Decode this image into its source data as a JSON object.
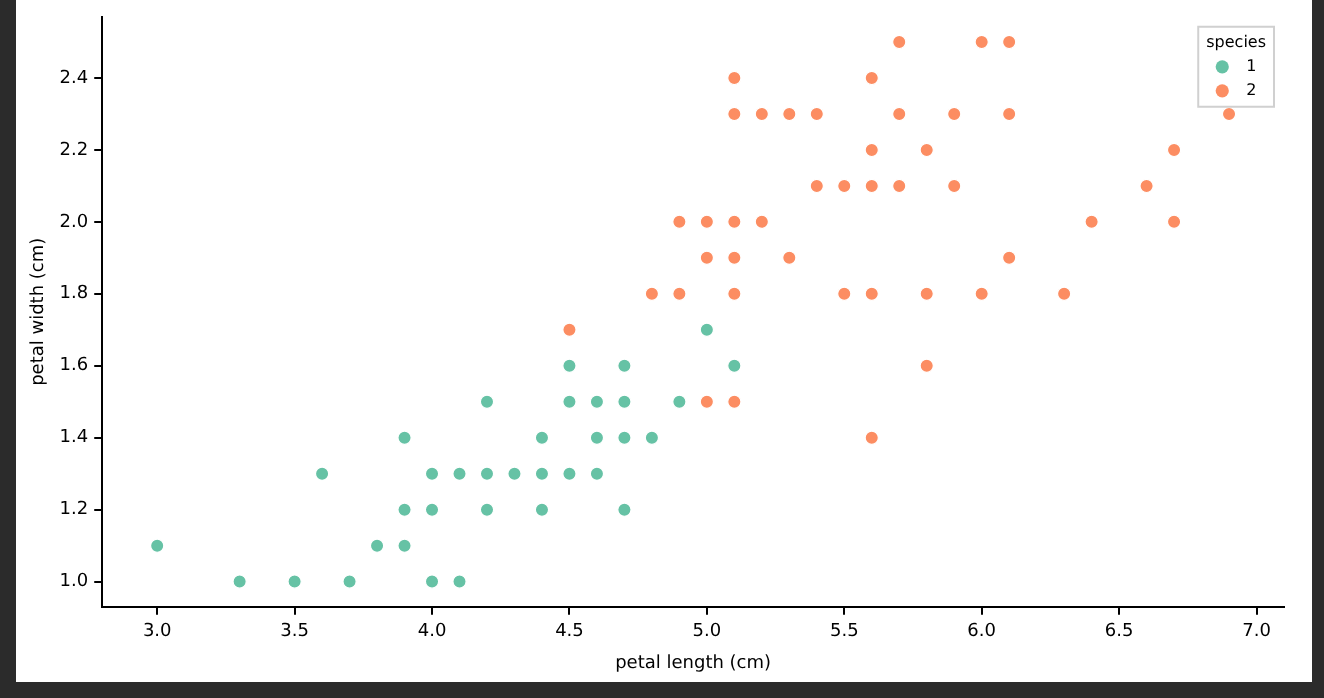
{
  "chart_data": {
    "type": "scatter",
    "xlabel": "petal length (cm)",
    "ylabel": "petal width (cm)",
    "legend_title": "species",
    "legend": "top right",
    "marker": "circle",
    "grid": false,
    "xlim": [
      2.8,
      7.1
    ],
    "ylim": [
      0.93,
      2.57
    ],
    "xticks": [
      {
        "value": 3,
        "label": "3.0"
      },
      {
        "value": 3.5,
        "label": "3.5"
      },
      {
        "value": 4,
        "label": "4.0"
      },
      {
        "value": 4.5,
        "label": "4.5"
      },
      {
        "value": 5,
        "label": "5.0"
      },
      {
        "value": 5.5,
        "label": "5.5"
      },
      {
        "value": 6,
        "label": "6.0"
      },
      {
        "value": 6.5,
        "label": "6.5"
      },
      {
        "value": 7,
        "label": "7.0"
      }
    ],
    "yticks": [
      {
        "value": 1,
        "label": "1.0"
      },
      {
        "value": 1.2,
        "label": "1.2"
      },
      {
        "value": 1.4,
        "label": "1.4"
      },
      {
        "value": 1.6,
        "label": "1.6"
      },
      {
        "value": 1.8,
        "label": "1.8"
      },
      {
        "value": 2,
        "label": "2.0"
      },
      {
        "value": 2.2,
        "label": "2.2"
      },
      {
        "value": 2.4,
        "label": "2.4"
      }
    ],
    "series": [
      {
        "name": "1",
        "color": "#66c2a5",
        "x": [
          4.7,
          4.5,
          4.9,
          4.0,
          4.6,
          4.5,
          4.7,
          3.3,
          4.6,
          3.9,
          3.5,
          4.2,
          4.0,
          3.6,
          4.4,
          4.1,
          3.9,
          4.7,
          4.3,
          4.8,
          5.0,
          3.8,
          3.7,
          3.9,
          5.1,
          4.5,
          4.7,
          4.4,
          4.1,
          4.4,
          4.6,
          4.0,
          4.2,
          4.2,
          3.0
        ],
        "values": [
          1.4,
          1.5,
          1.5,
          1.3,
          1.5,
          1.3,
          1.6,
          1.0,
          1.3,
          1.4,
          1.0,
          1.5,
          1.0,
          1.3,
          1.4,
          1.0,
          1.1,
          1.2,
          1.3,
          1.4,
          1.7,
          1.1,
          1.0,
          1.2,
          1.6,
          1.6,
          1.5,
          1.3,
          1.3,
          1.2,
          1.4,
          1.2,
          1.3,
          1.2,
          1.1
        ]
      },
      {
        "name": "2",
        "color": "#fc8d62",
        "x": [
          6.0,
          5.1,
          5.9,
          5.6,
          5.8,
          6.6,
          4.5,
          6.3,
          5.8,
          6.1,
          5.1,
          5.3,
          5.5,
          5.0,
          5.1,
          5.3,
          6.7,
          6.9,
          5.0,
          5.7,
          4.9,
          6.7,
          4.9,
          5.7,
          6.0,
          4.8,
          5.6,
          5.8,
          6.1,
          6.4,
          5.6,
          5.1,
          5.6,
          6.1,
          5.6,
          5.4,
          5.1,
          5.9,
          5.7,
          5.2,
          5.0,
          5.2,
          5.4,
          5.1,
          5.5
        ],
        "values": [
          2.5,
          1.9,
          2.1,
          1.8,
          2.2,
          2.1,
          1.7,
          1.8,
          1.8,
          2.5,
          2.0,
          1.9,
          2.1,
          2.0,
          2.4,
          2.3,
          2.2,
          2.3,
          1.5,
          2.3,
          2.0,
          2.0,
          1.8,
          2.1,
          1.8,
          1.8,
          2.1,
          1.6,
          1.9,
          2.0,
          2.2,
          1.5,
          1.4,
          2.3,
          2.4,
          2.1,
          2.3,
          2.3,
          2.5,
          2.3,
          1.9,
          2.0,
          2.3,
          1.8,
          1.8
        ]
      }
    ]
  }
}
